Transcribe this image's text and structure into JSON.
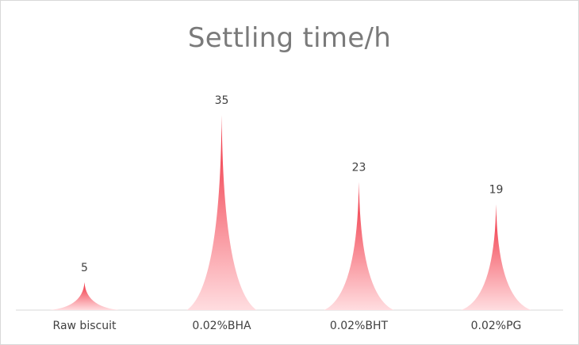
{
  "chart_data": {
    "type": "bar",
    "title": "Settling time/h",
    "categories": [
      "Raw biscuit",
      "0.02%BHA",
      "0.02%BHT",
      "0.02%PG"
    ],
    "values": [
      5,
      35,
      23,
      19
    ],
    "xlabel": "",
    "ylabel": "",
    "ylim": [
      0,
      35
    ],
    "grid": false,
    "legend": "none",
    "colors": {
      "bar_top": "#f02a3a",
      "bar_bottom": "#ffdde0",
      "axis": "#d9d9d9",
      "text": "#404040",
      "title": "#7a7a7a"
    }
  }
}
